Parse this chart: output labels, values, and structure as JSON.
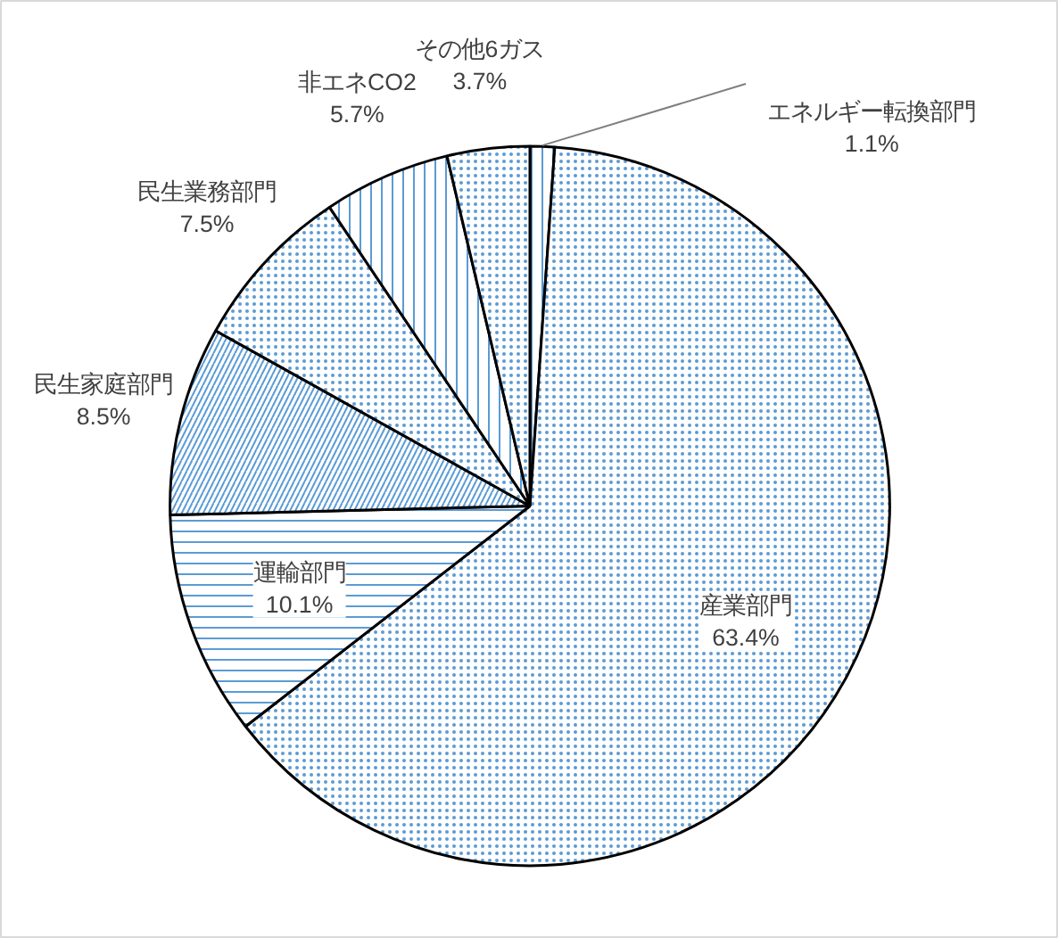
{
  "chart_data": {
    "type": "pie",
    "categories": [
      "エネルギー転換部門",
      "産業部門",
      "運輸部門",
      "民生家庭部門",
      "民生業務部門",
      "非エネCO2",
      "その他6ガス"
    ],
    "values": [
      1.1,
      63.4,
      10.1,
      8.5,
      7.5,
      5.7,
      3.7
    ],
    "colors": [
      "#ffffff",
      "#ffffff",
      "#ffffff",
      "#ffffff",
      "#ffffff",
      "#ffffff",
      "#ffffff"
    ],
    "value_labels": [
      "1.1%",
      "63.4%",
      "10.1%",
      "8.5%",
      "7.5%",
      "5.7%",
      "3.7%"
    ]
  }
}
